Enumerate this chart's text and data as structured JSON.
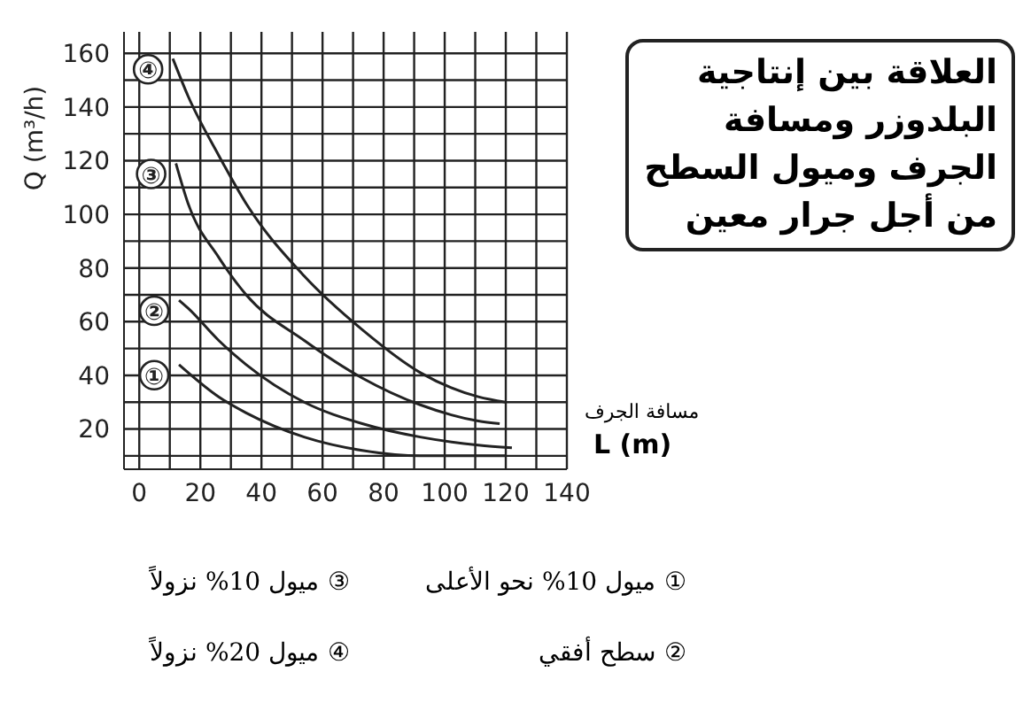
{
  "chart_data": {
    "type": "line",
    "title": "العلاقة بين إنتاجية البلدوزر ومسافة الجرف وميول السطح من أجل جرار معين",
    "xlabel": "L (m)",
    "ylabel": "Q (m³/h)",
    "annotations": [
      "مسافة الجرف",
      "① ميول 10% نحو الأعلى",
      "③ ميول 10% نزولاً",
      "② سطح أفقي",
      "④ ميول 20% نزولاً"
    ],
    "series": [
      {
        "name": "①",
        "color": "#222222",
        "x": [
          13,
          26,
          35,
          54,
          73,
          92,
          111,
          120
        ],
        "values": [
          44,
          32,
          26,
          17,
          12,
          10,
          10,
          10
        ]
      },
      {
        "name": "②",
        "color": "#222222",
        "x": [
          13,
          16,
          26,
          35,
          54,
          73,
          92,
          111,
          122
        ],
        "values": [
          68,
          65,
          53,
          44,
          30,
          22,
          17,
          14,
          13
        ]
      },
      {
        "name": "③",
        "color": "#222222",
        "x": [
          12,
          16,
          26,
          35,
          54,
          73,
          92,
          111,
          118
        ],
        "values": [
          119,
          104,
          84,
          70,
          53,
          39,
          29,
          23,
          22
        ]
      },
      {
        "name": "④",
        "color": "#222222",
        "x": [
          11,
          16,
          26,
          35,
          54,
          73,
          92,
          111,
          120
        ],
        "values": [
          158,
          144,
          122,
          104,
          77,
          57,
          41,
          32,
          30
        ]
      }
    ],
    "xlim": [
      -5,
      140
    ],
    "xticks": [
      0,
      20,
      40,
      60,
      80,
      100,
      120,
      140
    ],
    "ylim": [
      5,
      168
    ],
    "yticks": [
      20,
      40,
      60,
      80,
      100,
      120,
      140,
      160
    ],
    "grid": true,
    "marker": "none",
    "line_style": "solid",
    "legend": false
  }
}
